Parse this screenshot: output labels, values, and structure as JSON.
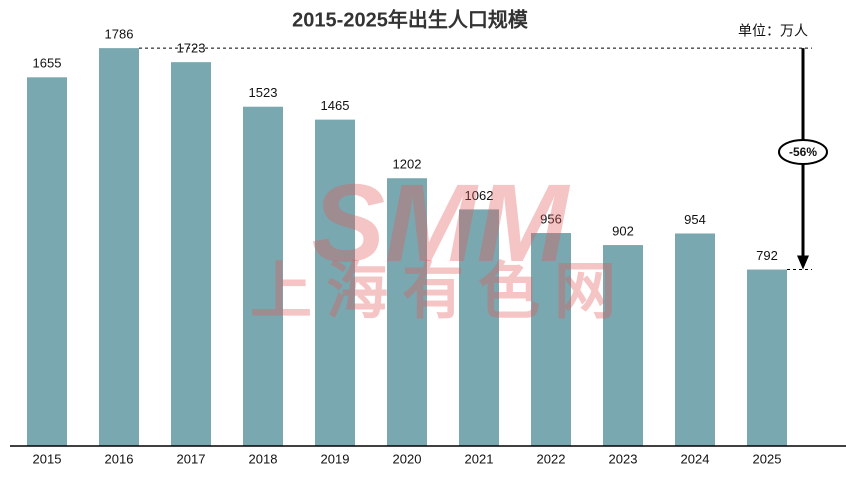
{
  "chart_data": {
    "type": "bar",
    "title": "2015-2025年出生人口规模",
    "unit_label": "单位：万人",
    "categories": [
      "2015",
      "2016",
      "2017",
      "2018",
      "2019",
      "2020",
      "2021",
      "2022",
      "2023",
      "2024",
      "2025"
    ],
    "values": [
      1655,
      1786,
      1723,
      1523,
      1465,
      1202,
      1062,
      956,
      902,
      954,
      792
    ],
    "color": "#7aa8b0",
    "ylim": [
      0,
      1800
    ],
    "annotation": "-56%",
    "watermark": "SMM",
    "watermark_sub": "上海有色网"
  }
}
